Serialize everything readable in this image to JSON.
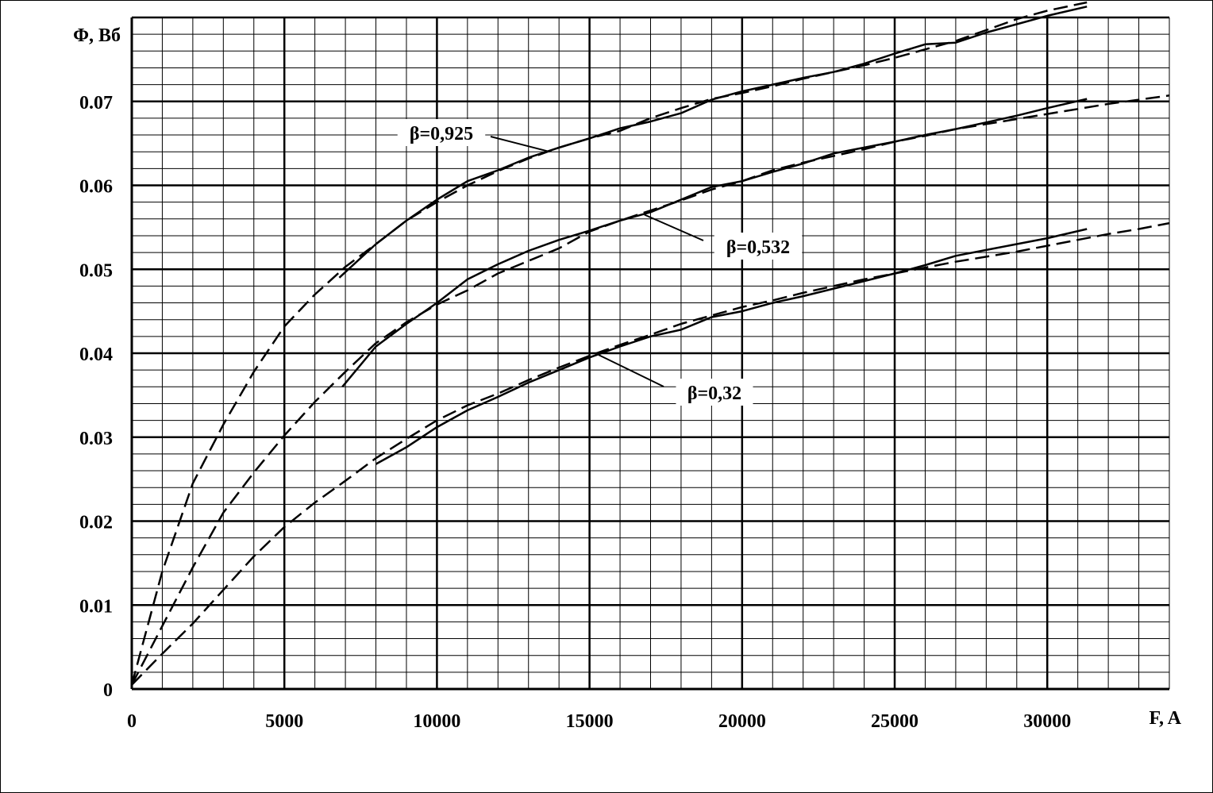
{
  "chart_data": {
    "type": "line",
    "xlabel": "F, A",
    "ylabel": "Φ, Вб",
    "xlim": [
      0,
      34000
    ],
    "ylim": [
      0,
      0.08
    ],
    "x_ticks": [
      "0",
      "5000",
      "10000",
      "15000",
      "20000",
      "25000",
      "30000"
    ],
    "y_ticks": [
      "0",
      "0.01",
      "0.02",
      "0.03",
      "0.04",
      "0.05",
      "0.06",
      "0.07"
    ],
    "grid": true,
    "series": [
      {
        "annotation": "β=0,925",
        "kind": "measured",
        "style": "solid",
        "points": [
          [
            6800,
            0.049
          ],
          [
            8000,
            0.053
          ],
          [
            9000,
            0.0558
          ],
          [
            10000,
            0.0583
          ],
          [
            11000,
            0.0605
          ],
          [
            12000,
            0.0618
          ],
          [
            13000,
            0.0633
          ],
          [
            14000,
            0.0645
          ],
          [
            15000,
            0.0656
          ],
          [
            16000,
            0.0668
          ],
          [
            17000,
            0.0676
          ],
          [
            18000,
            0.0686
          ],
          [
            19000,
            0.0702
          ],
          [
            20000,
            0.0712
          ],
          [
            21000,
            0.072
          ],
          [
            22000,
            0.0728
          ],
          [
            23000,
            0.0735
          ],
          [
            24000,
            0.0745
          ],
          [
            25000,
            0.0757
          ],
          [
            26000,
            0.0768
          ],
          [
            27000,
            0.077
          ],
          [
            28000,
            0.0782
          ],
          [
            29000,
            0.0792
          ],
          [
            30000,
            0.0802
          ],
          [
            31300,
            0.0813
          ]
        ]
      },
      {
        "annotation": "β=0,925",
        "kind": "approximation",
        "style": "dashed",
        "points": [
          [
            0,
            0.0005
          ],
          [
            1000,
            0.014
          ],
          [
            2000,
            0.0245
          ],
          [
            3000,
            0.0315
          ],
          [
            4000,
            0.0378
          ],
          [
            5000,
            0.0432
          ],
          [
            6000,
            0.047
          ],
          [
            7000,
            0.0503
          ],
          [
            8000,
            0.053
          ],
          [
            9000,
            0.0558
          ],
          [
            10000,
            0.058
          ],
          [
            11000,
            0.06
          ],
          [
            12000,
            0.0617
          ],
          [
            13000,
            0.0632
          ],
          [
            14000,
            0.0645
          ],
          [
            15000,
            0.0656
          ],
          [
            16000,
            0.0665
          ],
          [
            17000,
            0.068
          ],
          [
            18000,
            0.0692
          ],
          [
            19000,
            0.0703
          ],
          [
            20000,
            0.071
          ],
          [
            21000,
            0.0718
          ],
          [
            22000,
            0.0727
          ],
          [
            23000,
            0.0735
          ],
          [
            24000,
            0.0743
          ],
          [
            25000,
            0.0752
          ],
          [
            26000,
            0.0762
          ],
          [
            27000,
            0.0772
          ],
          [
            28000,
            0.0785
          ],
          [
            29000,
            0.0798
          ],
          [
            30000,
            0.0808
          ],
          [
            31300,
            0.0818
          ]
        ]
      },
      {
        "annotation": "β=0,532",
        "kind": "measured",
        "style": "solid",
        "points": [
          [
            6900,
            0.036
          ],
          [
            8000,
            0.0408
          ],
          [
            9000,
            0.0435
          ],
          [
            10000,
            0.046
          ],
          [
            11000,
            0.0488
          ],
          [
            12000,
            0.0506
          ],
          [
            13000,
            0.0522
          ],
          [
            14000,
            0.0535
          ],
          [
            15000,
            0.0546
          ],
          [
            16000,
            0.0558
          ],
          [
            17000,
            0.0568
          ],
          [
            18000,
            0.0583
          ],
          [
            19000,
            0.0598
          ],
          [
            20000,
            0.0605
          ],
          [
            21000,
            0.0616
          ],
          [
            22000,
            0.0626
          ],
          [
            23000,
            0.0638
          ],
          [
            24000,
            0.0645
          ],
          [
            25000,
            0.0652
          ],
          [
            26000,
            0.066
          ],
          [
            27000,
            0.0667
          ],
          [
            28000,
            0.0675
          ],
          [
            29000,
            0.0683
          ],
          [
            30000,
            0.0692
          ],
          [
            31300,
            0.0703
          ]
        ]
      },
      {
        "annotation": "β=0,532",
        "kind": "approximation",
        "style": "dashed",
        "points": [
          [
            0,
            0.0005
          ],
          [
            1000,
            0.0075
          ],
          [
            2000,
            0.0145
          ],
          [
            3000,
            0.021
          ],
          [
            4000,
            0.0258
          ],
          [
            5000,
            0.0302
          ],
          [
            6000,
            0.0342
          ],
          [
            7000,
            0.0378
          ],
          [
            8000,
            0.0412
          ],
          [
            9000,
            0.0437
          ],
          [
            10000,
            0.0458
          ],
          [
            11000,
            0.0475
          ],
          [
            12000,
            0.0495
          ],
          [
            13000,
            0.051
          ],
          [
            14000,
            0.0525
          ],
          [
            15000,
            0.0545
          ],
          [
            16000,
            0.0558
          ],
          [
            17000,
            0.057
          ],
          [
            18000,
            0.0582
          ],
          [
            19000,
            0.0595
          ],
          [
            20000,
            0.0605
          ],
          [
            21000,
            0.0618
          ],
          [
            22000,
            0.0627
          ],
          [
            23000,
            0.0635
          ],
          [
            24000,
            0.0643
          ],
          [
            25000,
            0.0652
          ],
          [
            26000,
            0.0659
          ],
          [
            27000,
            0.0667
          ],
          [
            28000,
            0.0673
          ],
          [
            29000,
            0.0679
          ],
          [
            30000,
            0.0685
          ],
          [
            31000,
            0.0691
          ],
          [
            32000,
            0.0697
          ],
          [
            33000,
            0.0702
          ],
          [
            34000,
            0.0707
          ]
        ]
      },
      {
        "annotation": "β=0,32",
        "kind": "measured",
        "style": "solid",
        "points": [
          [
            8000,
            0.0268
          ],
          [
            9000,
            0.0288
          ],
          [
            10000,
            0.0312
          ],
          [
            11000,
            0.0332
          ],
          [
            12000,
            0.0348
          ],
          [
            13000,
            0.0365
          ],
          [
            14000,
            0.038
          ],
          [
            15000,
            0.0395
          ],
          [
            16000,
            0.0408
          ],
          [
            17000,
            0.042
          ],
          [
            18000,
            0.0428
          ],
          [
            19000,
            0.0443
          ],
          [
            20000,
            0.045
          ],
          [
            21000,
            0.046
          ],
          [
            22000,
            0.0468
          ],
          [
            23000,
            0.0477
          ],
          [
            24000,
            0.0486
          ],
          [
            25000,
            0.0495
          ],
          [
            26000,
            0.0505
          ],
          [
            27000,
            0.0516
          ],
          [
            28000,
            0.0523
          ],
          [
            29000,
            0.053
          ],
          [
            30000,
            0.0537
          ],
          [
            31300,
            0.0548
          ]
        ]
      },
      {
        "annotation": "β=0,32",
        "kind": "approximation",
        "style": "dashed",
        "points": [
          [
            0,
            0.0005
          ],
          [
            1000,
            0.0042
          ],
          [
            2000,
            0.0078
          ],
          [
            3000,
            0.0118
          ],
          [
            4000,
            0.0158
          ],
          [
            5000,
            0.0193
          ],
          [
            6000,
            0.0222
          ],
          [
            7000,
            0.0248
          ],
          [
            8000,
            0.0275
          ],
          [
            9000,
            0.0298
          ],
          [
            10000,
            0.032
          ],
          [
            11000,
            0.0338
          ],
          [
            12000,
            0.0352
          ],
          [
            13000,
            0.0368
          ],
          [
            14000,
            0.0383
          ],
          [
            15000,
            0.0397
          ],
          [
            16000,
            0.041
          ],
          [
            17000,
            0.0422
          ],
          [
            18000,
            0.0435
          ],
          [
            19000,
            0.0445
          ],
          [
            20000,
            0.0455
          ],
          [
            21000,
            0.0463
          ],
          [
            22000,
            0.0472
          ],
          [
            23000,
            0.048
          ],
          [
            24000,
            0.0488
          ],
          [
            25000,
            0.0495
          ],
          [
            26000,
            0.0502
          ],
          [
            27000,
            0.0509
          ],
          [
            28000,
            0.0515
          ],
          [
            29000,
            0.0521
          ],
          [
            30000,
            0.0528
          ],
          [
            31000,
            0.0535
          ],
          [
            32000,
            0.0542
          ],
          [
            33000,
            0.0548
          ],
          [
            34000,
            0.0555
          ]
        ]
      }
    ],
    "annotations": [
      {
        "text": "β=0,925",
        "target": [
          13700,
          0.064
        ]
      },
      {
        "text": "β=0,532",
        "target": [
          16800,
          0.0565
        ]
      },
      {
        "text": "β=0,32",
        "target": [
          15300,
          0.0398
        ]
      }
    ]
  }
}
